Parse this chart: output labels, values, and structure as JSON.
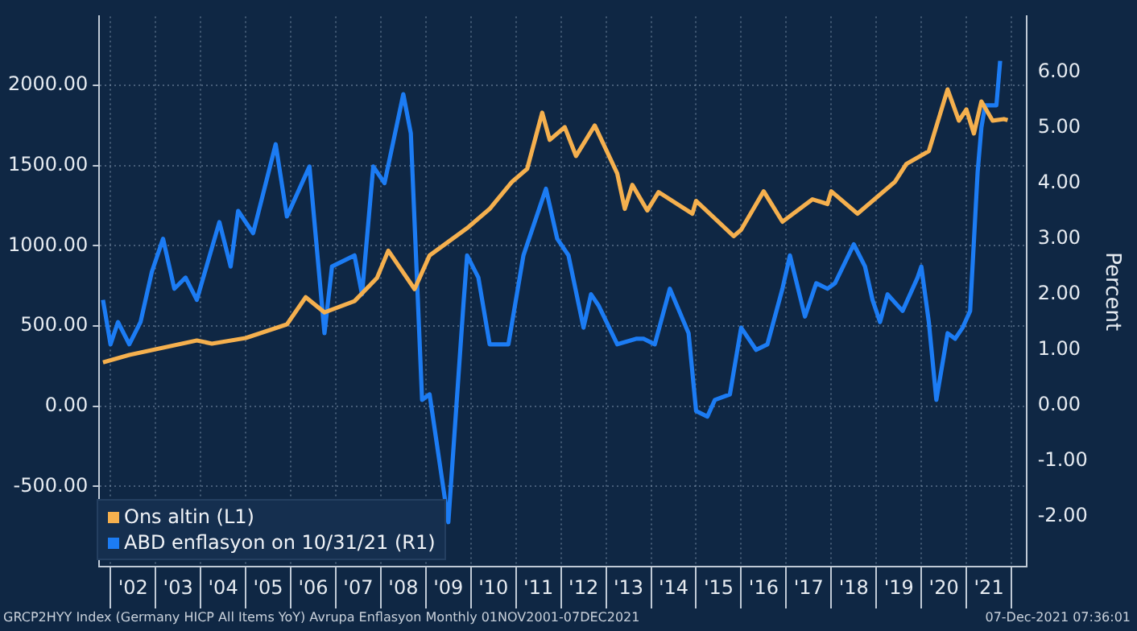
{
  "chart_data": {
    "type": "line",
    "y2label": "Percent",
    "legend": "bottom left",
    "grid": true,
    "marker": "none",
    "line_style": "solid",
    "xlim": [
      "2001-10",
      "2022-05"
    ],
    "xticks": [
      {
        "value": "2002-01",
        "label": null
      },
      {
        "value": "2002-07",
        "label": "'02"
      },
      {
        "value": "2003-01",
        "label": null
      },
      {
        "value": "2003-07",
        "label": "'03"
      },
      {
        "value": "2004-01",
        "label": null
      },
      {
        "value": "2004-07",
        "label": "'04"
      },
      {
        "value": "2005-01",
        "label": null
      },
      {
        "value": "2005-07",
        "label": "'05"
      },
      {
        "value": "2006-01",
        "label": null
      },
      {
        "value": "2006-07",
        "label": "'06"
      },
      {
        "value": "2007-01",
        "label": null
      },
      {
        "value": "2007-07",
        "label": "'07"
      },
      {
        "value": "2008-01",
        "label": null
      },
      {
        "value": "2008-07",
        "label": "'08"
      },
      {
        "value": "2009-01",
        "label": null
      },
      {
        "value": "2009-07",
        "label": "'09"
      },
      {
        "value": "2010-01",
        "label": null
      },
      {
        "value": "2010-07",
        "label": "'10"
      },
      {
        "value": "2011-01",
        "label": null
      },
      {
        "value": "2011-07",
        "label": "'11"
      },
      {
        "value": "2012-01",
        "label": null
      },
      {
        "value": "2012-07",
        "label": "'12"
      },
      {
        "value": "2013-01",
        "label": null
      },
      {
        "value": "2013-07",
        "label": "'13"
      },
      {
        "value": "2014-01",
        "label": null
      },
      {
        "value": "2014-07",
        "label": "'14"
      },
      {
        "value": "2015-01",
        "label": null
      },
      {
        "value": "2015-07",
        "label": "'15"
      },
      {
        "value": "2016-01",
        "label": null
      },
      {
        "value": "2016-07",
        "label": "'16"
      },
      {
        "value": "2017-01",
        "label": null
      },
      {
        "value": "2017-07",
        "label": "'17"
      },
      {
        "value": "2018-01",
        "label": null
      },
      {
        "value": "2018-07",
        "label": "'18"
      },
      {
        "value": "2019-01",
        "label": null
      },
      {
        "value": "2019-07",
        "label": "'19"
      },
      {
        "value": "2020-01",
        "label": null
      },
      {
        "value": "2020-07",
        "label": "'20"
      },
      {
        "value": "2021-01",
        "label": null
      },
      {
        "value": "2021-07",
        "label": "'21"
      },
      {
        "value": "2022-01",
        "label": null
      }
    ],
    "ylim": [
      -1000,
      2430
    ],
    "yticks": [
      {
        "value": -500,
        "label": "-500.00"
      },
      {
        "value": 0,
        "label": "0.00"
      },
      {
        "value": 500,
        "label": "500.00"
      },
      {
        "value": 1000,
        "label": "1000.00"
      },
      {
        "value": 1500,
        "label": "1500.00"
      },
      {
        "value": 2000,
        "label": "2000.00"
      }
    ],
    "y2lim": [
      -2.9,
      7
    ],
    "y2ticks": [
      {
        "value": -2,
        "label": "-2.00"
      },
      {
        "value": -1,
        "label": "-1.00"
      },
      {
        "value": 0,
        "label": "0.00"
      },
      {
        "value": 1,
        "label": "1.00"
      },
      {
        "value": 2,
        "label": "2.00"
      },
      {
        "value": 3,
        "label": "3.00"
      },
      {
        "value": 4,
        "label": "4.00"
      },
      {
        "value": 5,
        "label": "5.00"
      },
      {
        "value": 6,
        "label": "6.00"
      }
    ],
    "series": [
      {
        "name": "Ons altin (L1)",
        "color": "#f5b04e",
        "axis": "y",
        "x": [
          "2001-11",
          "2002-06",
          "2003-01",
          "2003-12",
          "2004-04",
          "2005-01",
          "2005-12",
          "2006-05",
          "2006-10",
          "2007-06",
          "2007-12",
          "2008-03",
          "2008-10",
          "2009-02",
          "2009-12",
          "2010-06",
          "2010-12",
          "2011-04",
          "2011-08",
          "2011-10",
          "2012-02",
          "2012-05",
          "2012-10",
          "2013-04",
          "2013-06",
          "2013-08",
          "2013-12",
          "2014-03",
          "2014-12",
          "2015-01",
          "2015-11",
          "2016-01",
          "2016-07",
          "2016-12",
          "2017-08",
          "2017-12",
          "2018-01",
          "2018-08",
          "2019-06",
          "2019-09",
          "2020-03",
          "2020-08",
          "2020-11",
          "2021-01",
          "2021-03",
          "2021-05",
          "2021-08",
          "2021-11",
          "2021-12"
        ],
        "values": [
          273,
          320,
          355,
          410,
          390,
          425,
          510,
          680,
          585,
          655,
          800,
          970,
          730,
          940,
          1110,
          1230,
          1400,
          1480,
          1830,
          1660,
          1740,
          1560,
          1750,
          1450,
          1230,
          1380,
          1220,
          1335,
          1200,
          1280,
          1060,
          1100,
          1340,
          1150,
          1290,
          1260,
          1340,
          1200,
          1400,
          1510,
          1590,
          1975,
          1780,
          1850,
          1700,
          1900,
          1780,
          1790,
          1783
        ]
      },
      {
        "name": "ABD enflasyon on 10/31/21 (R1)",
        "color": "#1c7cf4",
        "axis": "y2",
        "x": [
          "2001-11",
          "2002-01",
          "2002-03",
          "2002-06",
          "2002-09",
          "2002-12",
          "2003-03",
          "2003-06",
          "2003-09",
          "2003-12",
          "2004-06",
          "2004-09",
          "2004-11",
          "2005-03",
          "2005-09",
          "2005-12",
          "2006-06",
          "2006-10",
          "2006-12",
          "2007-06",
          "2007-08",
          "2007-11",
          "2008-02",
          "2008-07",
          "2008-09",
          "2008-12",
          "2009-02",
          "2009-07",
          "2009-11",
          "2009-12",
          "2010-03",
          "2010-06",
          "2010-11",
          "2011-03",
          "2011-09",
          "2011-12",
          "2012-03",
          "2012-07",
          "2012-09",
          "2012-11",
          "2013-04",
          "2013-09",
          "2013-11",
          "2014-02",
          "2014-06",
          "2014-11",
          "2015-01",
          "2015-04",
          "2015-06",
          "2015-10",
          "2016-01",
          "2016-05",
          "2016-08",
          "2016-12",
          "2017-02",
          "2017-06",
          "2017-09",
          "2017-12",
          "2018-02",
          "2018-07",
          "2018-10",
          "2018-12",
          "2019-02",
          "2019-04",
          "2019-08",
          "2019-12",
          "2020-01",
          "2020-03",
          "2020-05",
          "2020-08",
          "2020-10",
          "2020-12",
          "2021-02",
          "2021-04",
          "2021-05",
          "2021-06",
          "2021-09",
          "2021-10"
        ],
        "values": [
          1.9,
          1.1,
          1.5,
          1.1,
          1.5,
          2.4,
          3.0,
          2.1,
          2.3,
          1.9,
          3.3,
          2.5,
          3.5,
          3.1,
          4.7,
          3.4,
          4.3,
          1.3,
          2.5,
          2.7,
          2.0,
          4.3,
          4.0,
          5.6,
          4.9,
          0.1,
          0.2,
          -2.1,
          1.8,
          2.7,
          2.3,
          1.1,
          1.1,
          2.7,
          3.9,
          3.0,
          2.7,
          1.4,
          2.0,
          1.8,
          1.1,
          1.2,
          1.2,
          1.1,
          2.1,
          1.3,
          -0.1,
          -0.2,
          0.1,
          0.2,
          1.4,
          1.0,
          1.1,
          2.1,
          2.7,
          1.6,
          2.2,
          2.1,
          2.2,
          2.9,
          2.5,
          1.9,
          1.5,
          2.0,
          1.7,
          2.3,
          2.5,
          1.5,
          0.1,
          1.3,
          1.2,
          1.4,
          1.7,
          4.2,
          5.0,
          5.4,
          5.4,
          6.2
        ]
      }
    ],
    "annotations": [
      "GRCP2HYY Index (Germany HICP All Items YoY) Avrupa Enflasyon  Monthly 01NOV2001-07DEC2021",
      "07-Dec-2021 07:36:01"
    ]
  }
}
